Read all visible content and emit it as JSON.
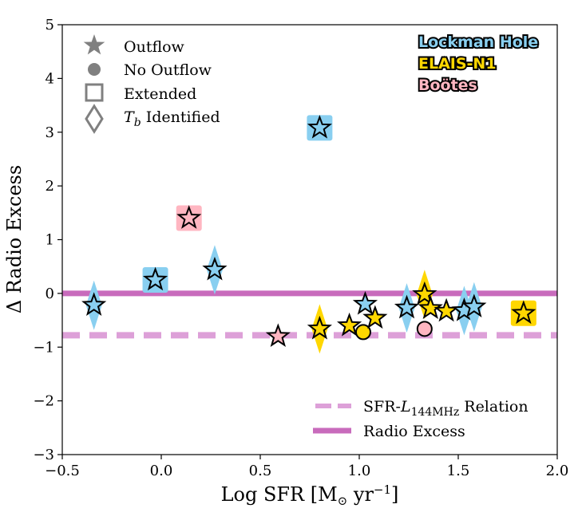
{
  "chart_data": {
    "type": "scatter",
    "xlabel": "Log SFR [M",
    "xlabel_sub": "⊙",
    "xlabel_unit": " yr",
    "xlabel_sup": "−1",
    "xlabel_end": "]",
    "ylabel": "Δ Radio Excess",
    "xlim": [
      -0.5,
      2.0
    ],
    "ylim": [
      -3,
      5
    ],
    "xticks": [
      -0.5,
      0.0,
      0.5,
      1.0,
      1.5,
      2.0
    ],
    "xtick_labels": [
      "−0.5",
      "0.0",
      "0.5",
      "1.0",
      "1.5",
      "2.0"
    ],
    "yticks": [
      -3,
      -2,
      -1,
      0,
      1,
      2,
      3,
      4,
      5
    ],
    "ytick_labels": [
      "−3",
      "−2",
      "−1",
      "0",
      "1",
      "2",
      "3",
      "4",
      "5"
    ],
    "grid": false,
    "fields": [
      {
        "name": "Lockman Hole",
        "color": "#89CFF0"
      },
      {
        "name": "ELAIS-N1",
        "color": "#FFD700"
      },
      {
        "name": "Boötes",
        "color": "#FFB6C1"
      }
    ],
    "marker_legend": {
      "outflow": "Outflow",
      "no_outflow": "No Outflow",
      "extended": "Extended",
      "tb_prefix": "T",
      "tb_sub": "b",
      "tb_suffix": " Identified"
    },
    "lines": [
      {
        "label_prefix": "SFR-",
        "label_L": "L",
        "label_sub": "144MHz",
        "label_suffix": " Relation",
        "y": -0.78,
        "style": "dashed",
        "color": "#DDA0D8"
      },
      {
        "label": "Radio Excess",
        "y": 0.0,
        "style": "solid",
        "color": "#C86BBC"
      }
    ],
    "points": [
      {
        "x": -0.34,
        "y": -0.22,
        "field": "Lockman Hole",
        "marker": "star",
        "tb": true,
        "extended": false
      },
      {
        "x": -0.03,
        "y": 0.25,
        "field": "Lockman Hole",
        "marker": "star",
        "tb": false,
        "extended": true
      },
      {
        "x": 0.14,
        "y": 1.4,
        "field": "Boötes",
        "marker": "star",
        "tb": false,
        "extended": true
      },
      {
        "x": 0.27,
        "y": 0.44,
        "field": "Lockman Hole",
        "marker": "star",
        "tb": true,
        "extended": false
      },
      {
        "x": 0.59,
        "y": -0.8,
        "field": "Boötes",
        "marker": "star",
        "tb": false,
        "extended": false
      },
      {
        "x": 0.8,
        "y": 3.08,
        "field": "Lockman Hole",
        "marker": "star",
        "tb": false,
        "extended": true
      },
      {
        "x": 0.8,
        "y": -0.66,
        "field": "ELAIS-N1",
        "marker": "star",
        "tb": true,
        "extended": false
      },
      {
        "x": 0.95,
        "y": -0.6,
        "field": "ELAIS-N1",
        "marker": "star",
        "tb": false,
        "extended": false
      },
      {
        "x": 1.02,
        "y": -0.72,
        "field": "ELAIS-N1",
        "marker": "circle",
        "tb": false,
        "extended": false
      },
      {
        "x": 1.03,
        "y": -0.2,
        "field": "Lockman Hole",
        "marker": "star",
        "tb": false,
        "extended": false
      },
      {
        "x": 1.08,
        "y": -0.46,
        "field": "ELAIS-N1",
        "marker": "star",
        "tb": false,
        "extended": false
      },
      {
        "x": 1.24,
        "y": -0.27,
        "field": "Lockman Hole",
        "marker": "star",
        "tb": true,
        "extended": false
      },
      {
        "x": 1.33,
        "y": -0.02,
        "field": "ELAIS-N1",
        "marker": "star",
        "tb": true,
        "extended": false
      },
      {
        "x": 1.33,
        "y": -0.66,
        "field": "Boötes",
        "marker": "circle",
        "tb": false,
        "extended": false
      },
      {
        "x": 1.36,
        "y": -0.28,
        "field": "ELAIS-N1",
        "marker": "star",
        "tb": false,
        "extended": false
      },
      {
        "x": 1.44,
        "y": -0.33,
        "field": "ELAIS-N1",
        "marker": "star",
        "tb": false,
        "extended": false
      },
      {
        "x": 1.53,
        "y": -0.32,
        "field": "Lockman Hole",
        "marker": "star",
        "tb": true,
        "extended": false
      },
      {
        "x": 1.58,
        "y": -0.25,
        "field": "Lockman Hole",
        "marker": "star",
        "tb": true,
        "extended": false
      },
      {
        "x": 1.83,
        "y": -0.37,
        "field": "ELAIS-N1",
        "marker": "star",
        "tb": false,
        "extended": true
      }
    ]
  }
}
